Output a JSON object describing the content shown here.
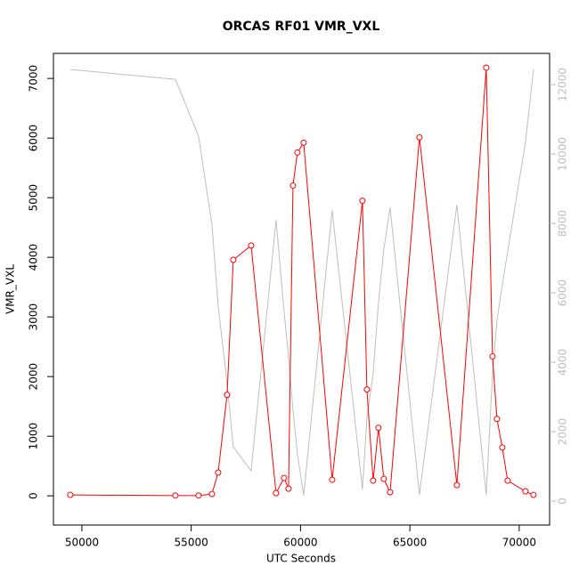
{
  "chart_data": {
    "type": "line",
    "title": "ORCAS RF01 VMR_VXL",
    "x_label": "UTC Seconds",
    "y_label": "VMR_VXL",
    "x": [
      49470,
      54277,
      55336,
      55947,
      56232,
      56640,
      56925,
      57740,
      58880,
      59246,
      59450,
      59654,
      59857,
      60143,
      61446,
      62831,
      63035,
      63320,
      63564,
      63809,
      64094,
      65438,
      67149,
      68493,
      68778,
      68982,
      69226,
      69470,
      70285,
      70652
    ],
    "series": [
      {
        "color": "#ff0000",
        "markers": true,
        "values": [
          15,
          5,
          5,
          30,
          390,
          1695,
          3958,
          4198,
          45,
          300,
          120,
          5203,
          5757,
          5922,
          270,
          4948,
          1784,
          255,
          1140,
          285,
          60,
          6012,
          180,
          7180,
          2339,
          1290,
          810,
          255,
          75,
          15
        ]
      },
      {
        "color": "#bebebe",
        "axis": "y2",
        "markers": false,
        "values": [
          12436,
          12154,
          10513,
          7974,
          5641,
          3400,
          1564,
          872,
          8103,
          5462,
          4179,
          2641,
          1359,
          154,
          8385,
          333,
          2385,
          3667,
          5718,
          7256,
          8462,
          179,
          8538,
          179,
          3667,
          5205,
          6231,
          7179,
          10333,
          12436
        ]
      }
    ],
    "xlim": [
      48700,
      71390
    ],
    "xticks": [
      50000,
      55000,
      60000,
      65000,
      70000
    ],
    "ylim": [
      -490,
      7420
    ],
    "yticks": [
      0,
      1000,
      2000,
      3000,
      4000,
      5000,
      6000,
      7000
    ],
    "y2lim": [
      -690,
      12900
    ],
    "y2ticks": [
      0,
      2000,
      4000,
      6000,
      8000,
      10000,
      12000
    ],
    "y2_color": "#bebebe"
  }
}
